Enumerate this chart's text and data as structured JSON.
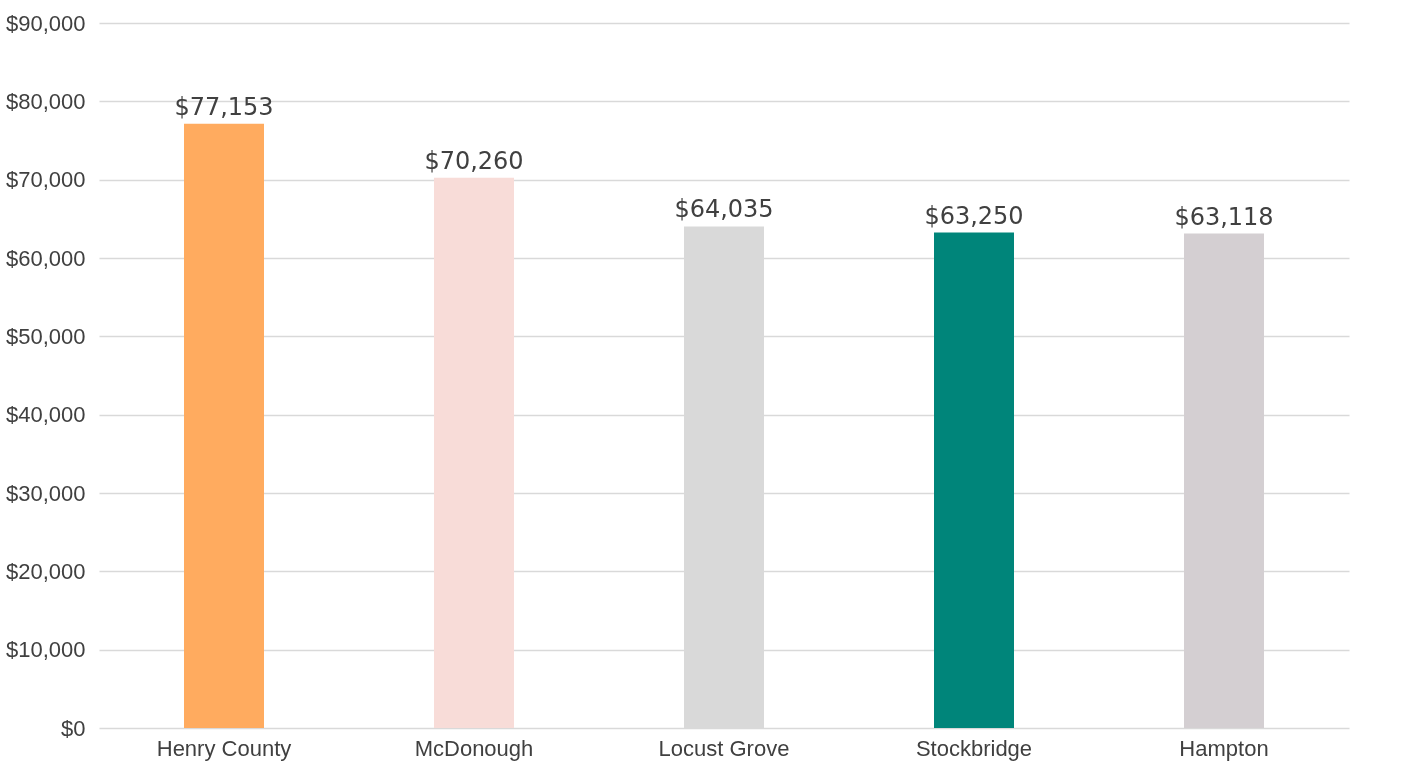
{
  "chart_data": {
    "type": "bar",
    "categories": [
      "Henry County",
      "McDonough",
      "Locust Grove",
      "Stockbridge",
      "Hampton"
    ],
    "values": [
      77153,
      70260,
      64035,
      63250,
      63118
    ],
    "colors": [
      "#ffab5f",
      "#f8dcd8",
      "#d9d9d9",
      "#00857a",
      "#d4cfd2"
    ],
    "value_labels": [
      "$77,153",
      "$70,260",
      "$64,035",
      "$63,250",
      "$63,118"
    ],
    "ylim": [
      0,
      90000
    ],
    "yticks": [
      {
        "value": 0,
        "label": "$0"
      },
      {
        "value": 10000,
        "label": "$10,000"
      },
      {
        "value": 20000,
        "label": "$20,000"
      },
      {
        "value": 30000,
        "label": "$30,000"
      },
      {
        "value": 40000,
        "label": "$40,000"
      },
      {
        "value": 50000,
        "label": "$50,000"
      },
      {
        "value": 60000,
        "label": "$60,000"
      },
      {
        "value": 70000,
        "label": "$70,000"
      },
      {
        "value": 80000,
        "label": "$80,000"
      },
      {
        "value": 90000,
        "label": "$90,000"
      }
    ],
    "grid": "y",
    "legend": false
  }
}
